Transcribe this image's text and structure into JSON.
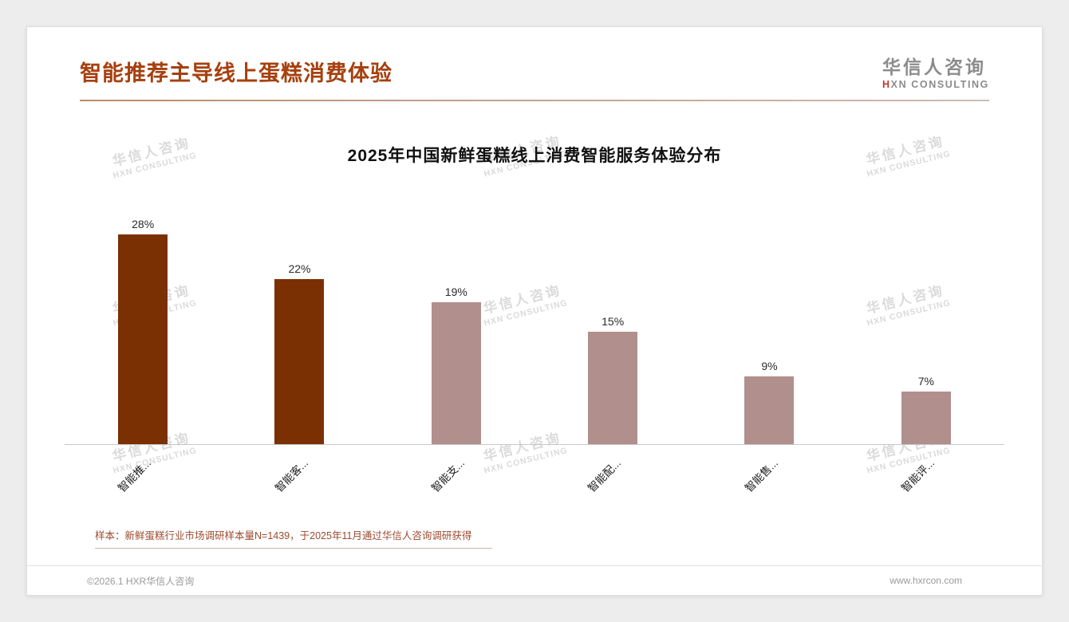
{
  "page": {
    "header": {
      "title": "智能推荐主导线上蛋糕消费体验",
      "logo_cn": "华信人咨询",
      "logo_en_first": "H",
      "logo_en_rest": "XN CONSULTING",
      "accent_color": "#c0392b",
      "title_color": "#a6400f"
    },
    "watermark": {
      "line1": "华信人咨询",
      "line2": "HXN CONSULTING"
    },
    "footer": {
      "note": "样本：新鲜蛋糕行业市场调研样本量N=1439，于2025年11月通过华信人咨询调研获得",
      "copyright": "©2026.1 HXR华信人咨询",
      "website": "www.hxrcon.com"
    }
  },
  "chart_data": {
    "type": "bar",
    "title": "2025年中国新鲜蛋糕线上消费智能服务体验分布",
    "categories": [
      "智能推...",
      "智能客...",
      "智能支...",
      "智能配...",
      "智能售...",
      "智能评..."
    ],
    "values": [
      28,
      22,
      19,
      15,
      9,
      7
    ],
    "value_labels": [
      "28%",
      "22%",
      "19%",
      "15%",
      "9%",
      "7%"
    ],
    "unit": "%",
    "ylim": [
      0,
      30
    ],
    "grid": false,
    "legend": false,
    "bar_colors": [
      "#7a3003",
      "#7a3003",
      "#b18f8c",
      "#b18f8c",
      "#b18f8c",
      "#b18f8c"
    ],
    "highlight_color": "#7a3003",
    "base_color": "#b18f8c"
  }
}
